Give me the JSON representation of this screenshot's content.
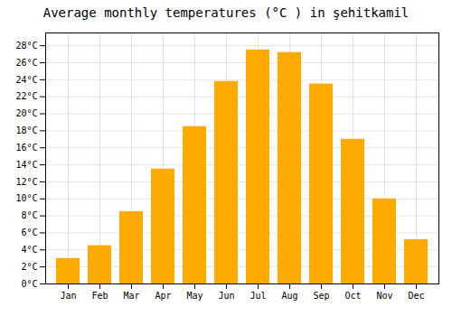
{
  "chart_data": {
    "type": "bar",
    "title": "Average monthly temperatures (°C ) in şehitkamil",
    "categories": [
      "Jan",
      "Feb",
      "Mar",
      "Apr",
      "May",
      "Jun",
      "Jul",
      "Aug",
      "Sep",
      "Oct",
      "Nov",
      "Dec"
    ],
    "values": [
      3,
      4.5,
      8.5,
      13.5,
      18.5,
      23.8,
      27.5,
      27.2,
      23.5,
      17,
      10,
      5.2
    ],
    "color": "#FFAA00",
    "ylim": [
      0,
      29.5
    ],
    "yticks": [
      {
        "value": 0,
        "label": "0°C"
      },
      {
        "value": 2,
        "label": "2°C"
      },
      {
        "value": 4,
        "label": "4°C"
      },
      {
        "value": 6,
        "label": "6°C"
      },
      {
        "value": 8,
        "label": "8°C"
      },
      {
        "value": 10,
        "label": "10°C"
      },
      {
        "value": 12,
        "label": "12°C"
      },
      {
        "value": 14,
        "label": "14°C"
      },
      {
        "value": 16,
        "label": "16°C"
      },
      {
        "value": 18,
        "label": "18°C"
      },
      {
        "value": 20,
        "label": "20°C"
      },
      {
        "value": 22,
        "label": "22°C"
      },
      {
        "value": 24,
        "label": "24°C"
      },
      {
        "value": 26,
        "label": "26°C"
      },
      {
        "value": 28,
        "label": "28°C"
      }
    ],
    "grid": true
  }
}
